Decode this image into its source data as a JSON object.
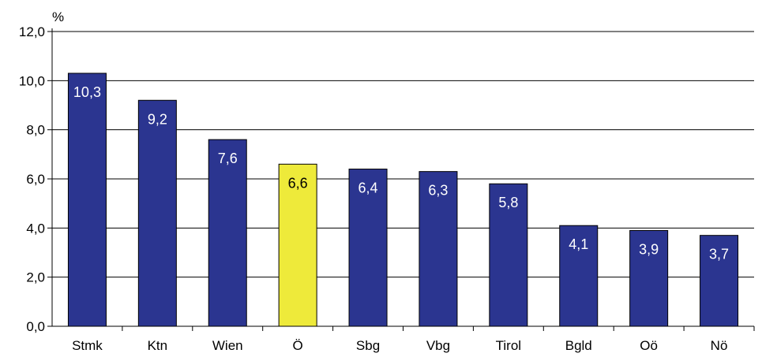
{
  "chart_data": {
    "type": "bar",
    "unit_label": "%",
    "categories": [
      "Stmk",
      "Ktn",
      "Wien",
      "Ö",
      "Sbg",
      "Vbg",
      "Tirol",
      "Bgld",
      "Oö",
      "Nö"
    ],
    "values": [
      10.3,
      9.2,
      7.6,
      6.6,
      6.4,
      6.3,
      5.8,
      4.1,
      3.9,
      3.7
    ],
    "value_labels": [
      "10,3",
      "9,2",
      "7,6",
      "6,6",
      "6,4",
      "6,3",
      "5,8",
      "4,1",
      "3,9",
      "3,7"
    ],
    "ylim": [
      0,
      12
    ],
    "yticks": [
      0,
      2,
      4,
      6,
      8,
      10,
      12
    ],
    "ytick_labels": [
      "0,0",
      "2,0",
      "4,0",
      "6,0",
      "8,0",
      "10,0",
      "12,0"
    ],
    "grid": true,
    "colors": {
      "bar": "#2b3590",
      "highlight_bar": "#eeea3a",
      "highlight_category": "Ö",
      "label_on_bar": "#ffffff",
      "label_on_highlight": "#000000",
      "grid": "#000000"
    }
  }
}
